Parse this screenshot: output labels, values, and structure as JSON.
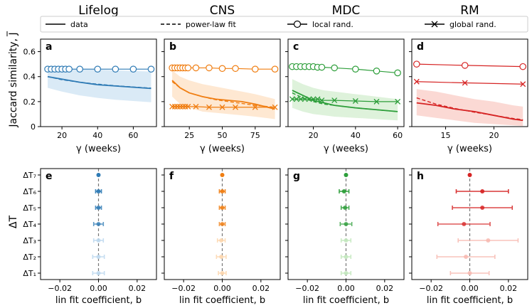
{
  "colors": {
    "lifelog": [
      "#2f7bb5",
      "#bcd8ef"
    ],
    "cns": [
      "#f07e12",
      "#fdd6ad"
    ],
    "mdc": [
      "#2d9e3a",
      "#c2e8bd"
    ],
    "rm": [
      "#d62424",
      "#f7b9b0"
    ],
    "axis": "#000000",
    "dashed_zero": "#777777"
  },
  "legend": {
    "items": [
      {
        "label": "data",
        "style": "solid",
        "marker": "none"
      },
      {
        "label": "power-law fit",
        "style": "dashed",
        "marker": "none"
      },
      {
        "label": "local rand.",
        "style": "solid",
        "marker": "circle"
      },
      {
        "label": "global rand.",
        "style": "solid",
        "marker": "x"
      }
    ]
  },
  "column_titles": [
    "Lifelog",
    "CNS",
    "MDC",
    "RM"
  ],
  "top_ylabel": "Jaccard similarity, J̅",
  "bottom_ylabel": "ΔT",
  "chart_data": [
    {
      "type": "line",
      "panel": "a",
      "dataset": "Lifelog",
      "xlabel": "γ (weeks)",
      "ylabel": "Jaccard similarity, J̅",
      "xlim": [
        8,
        73
      ],
      "ylim": [
        0,
        0.7
      ],
      "xticks": [
        20,
        40,
        60
      ],
      "yticks": [
        0,
        0.2,
        0.4,
        0.6
      ],
      "data": {
        "x": [
          12,
          20,
          30,
          40,
          50,
          60,
          70
        ],
        "y": [
          0.4,
          0.38,
          0.355,
          0.335,
          0.325,
          0.315,
          0.305
        ]
      },
      "fit": {
        "x": [
          12,
          20,
          30,
          40,
          50,
          60,
          70
        ],
        "y": [
          0.4,
          0.375,
          0.355,
          0.34,
          0.327,
          0.317,
          0.308
        ]
      },
      "band": {
        "x": [
          12,
          20,
          30,
          40,
          50,
          60,
          70
        ],
        "low": [
          0.31,
          0.28,
          0.25,
          0.23,
          0.215,
          0.205,
          0.195
        ],
        "high": [
          0.48,
          0.47,
          0.46,
          0.455,
          0.45,
          0.445,
          0.44
        ]
      },
      "local_rand": {
        "x": [
          12,
          14,
          16,
          18,
          20,
          22,
          24,
          30,
          40,
          50,
          60,
          70
        ],
        "y": [
          0.46,
          0.46,
          0.46,
          0.46,
          0.46,
          0.46,
          0.46,
          0.46,
          0.46,
          0.46,
          0.46,
          0.46
        ]
      },
      "global_rand": null
    },
    {
      "type": "line",
      "panel": "b",
      "dataset": "CNS",
      "xlabel": "γ (weeks)",
      "ylabel": "",
      "xlim": [
        6,
        94
      ],
      "ylim": [
        0,
        0.7
      ],
      "xticks": [
        25,
        50,
        75
      ],
      "yticks": [
        0,
        0.2,
        0.4,
        0.6
      ],
      "data": {
        "x": [
          12,
          18,
          25,
          35,
          45,
          55,
          65,
          75,
          90
        ],
        "y": [
          0.37,
          0.31,
          0.27,
          0.24,
          0.22,
          0.21,
          0.2,
          0.18,
          0.14
        ]
      },
      "fit": {
        "x": [
          12,
          18,
          25,
          35,
          45,
          55,
          65,
          75,
          90
        ],
        "y": [
          0.36,
          0.31,
          0.27,
          0.24,
          0.215,
          0.2,
          0.185,
          0.17,
          0.155
        ]
      },
      "band": {
        "x": [
          12,
          18,
          25,
          35,
          45,
          55,
          65,
          75,
          90
        ],
        "low": [
          0.24,
          0.18,
          0.15,
          0.12,
          0.11,
          0.1,
          0.09,
          0.08,
          0.06
        ],
        "high": [
          0.45,
          0.4,
          0.37,
          0.34,
          0.32,
          0.3,
          0.28,
          0.26,
          0.22
        ]
      },
      "local_rand": {
        "x": [
          12,
          14,
          16,
          18,
          20,
          22,
          24,
          30,
          40,
          50,
          60,
          75,
          90
        ],
        "y": [
          0.47,
          0.47,
          0.47,
          0.47,
          0.47,
          0.47,
          0.47,
          0.47,
          0.47,
          0.465,
          0.465,
          0.46,
          0.46
        ]
      },
      "global_rand": {
        "x": [
          12,
          14,
          16,
          18,
          20,
          22,
          24,
          30,
          40,
          50,
          60,
          75,
          90
        ],
        "y": [
          0.16,
          0.16,
          0.16,
          0.16,
          0.16,
          0.16,
          0.16,
          0.16,
          0.155,
          0.155,
          0.155,
          0.155,
          0.155
        ]
      }
    },
    {
      "type": "line",
      "panel": "c",
      "dataset": "MDC",
      "xlabel": "γ (weeks)",
      "ylabel": "",
      "xlim": [
        8,
        63
      ],
      "ylim": [
        0,
        0.7
      ],
      "xticks": [
        20,
        40,
        60
      ],
      "yticks": [
        0,
        0.2,
        0.4,
        0.6
      ],
      "data": {
        "x": [
          10,
          15,
          20,
          25,
          30,
          40,
          50,
          60
        ],
        "y": [
          0.29,
          0.25,
          0.21,
          0.19,
          0.17,
          0.15,
          0.135,
          0.12
        ]
      },
      "fit": {
        "x": [
          10,
          15,
          20,
          25,
          30,
          40,
          50,
          60
        ],
        "y": [
          0.27,
          0.23,
          0.2,
          0.18,
          0.17,
          0.15,
          0.135,
          0.12
        ]
      },
      "band": {
        "x": [
          10,
          15,
          20,
          25,
          30,
          40,
          50,
          60
        ],
        "low": [
          0.15,
          0.12,
          0.1,
          0.09,
          0.08,
          0.07,
          0.06,
          0.05
        ],
        "high": [
          0.38,
          0.34,
          0.31,
          0.29,
          0.28,
          0.26,
          0.24,
          0.22
        ]
      },
      "local_rand": {
        "x": [
          10,
          12,
          14,
          16,
          18,
          20,
          22,
          24,
          30,
          40,
          50,
          60
        ],
        "y": [
          0.48,
          0.48,
          0.48,
          0.48,
          0.48,
          0.48,
          0.475,
          0.475,
          0.47,
          0.46,
          0.445,
          0.43
        ]
      },
      "global_rand": {
        "x": [
          10,
          12,
          14,
          16,
          18,
          20,
          22,
          24,
          30,
          40,
          50,
          60
        ],
        "y": [
          0.22,
          0.22,
          0.22,
          0.22,
          0.22,
          0.22,
          0.22,
          0.21,
          0.21,
          0.205,
          0.2,
          0.2
        ]
      }
    },
    {
      "type": "line",
      "panel": "d",
      "dataset": "RM",
      "xlabel": "γ (weeks)",
      "ylabel": "",
      "xlim": [
        11.5,
        23.5
      ],
      "ylim": [
        0,
        0.7
      ],
      "xticks": [
        15,
        20
      ],
      "yticks": [
        0,
        0.2,
        0.4,
        0.6
      ],
      "data": {
        "x": [
          12,
          14,
          16,
          18,
          20,
          22,
          23
        ],
        "y": [
          0.19,
          0.17,
          0.14,
          0.12,
          0.09,
          0.06,
          0.05
        ]
      },
      "fit": {
        "x": [
          12,
          14,
          16,
          18,
          20,
          22,
          23
        ],
        "y": [
          0.23,
          0.18,
          0.145,
          0.115,
          0.09,
          0.065,
          0.055
        ]
      },
      "band": {
        "x": [
          12,
          14,
          16,
          18,
          20,
          22,
          23
        ],
        "low": [
          0.09,
          0.07,
          0.05,
          0.03,
          0.02,
          0.01,
          0.005
        ],
        "high": [
          0.3,
          0.28,
          0.25,
          0.22,
          0.2,
          0.17,
          0.16
        ]
      },
      "local_rand": {
        "x": [
          12,
          17,
          23
        ],
        "y": [
          0.5,
          0.49,
          0.48
        ]
      },
      "global_rand": {
        "x": [
          12,
          17,
          23
        ],
        "y": [
          0.36,
          0.35,
          0.34
        ]
      }
    },
    {
      "type": "scatter",
      "panel": "e",
      "dataset": "Lifelog",
      "error_bars": true,
      "xlabel": "lin fit coefficient, b",
      "ylabel": "ΔT",
      "xlim": [
        -0.03,
        0.03
      ],
      "xticks": [
        -0.02,
        0.0,
        0.02
      ],
      "xticklabels": [
        "−0.02",
        "0.00",
        "0.02"
      ],
      "categories": [
        "ΔT₇",
        "ΔT₆",
        "ΔT₅",
        "ΔT₄",
        "ΔT₃",
        "ΔT₂",
        "ΔT₁"
      ],
      "values": [
        0.0,
        0.0,
        0.0,
        0.0,
        0.0,
        0.0,
        0.0
      ],
      "errors": [
        0.0,
        0.0015,
        0.0015,
        0.0025,
        0.0025,
        0.003,
        0.003
      ]
    },
    {
      "type": "scatter",
      "panel": "f",
      "dataset": "CNS",
      "error_bars": true,
      "xlabel": "lin fit coefficient, b",
      "ylabel": "",
      "xlim": [
        -0.03,
        0.03
      ],
      "xticks": [
        -0.02,
        0.0,
        0.02
      ],
      "xticklabels": [
        "−0.02",
        "0.00",
        "0.02"
      ],
      "categories": [
        "ΔT₇",
        "ΔT₆",
        "ΔT₅",
        "ΔT₄",
        "ΔT₃",
        "ΔT₂",
        "ΔT₁"
      ],
      "values": [
        0.0,
        0.0,
        0.0,
        0.0,
        -0.0005,
        -0.0005,
        0.0
      ],
      "errors": [
        0.0,
        0.0015,
        0.0015,
        0.0015,
        0.002,
        0.0025,
        0.002
      ]
    },
    {
      "type": "scatter",
      "panel": "g",
      "dataset": "MDC",
      "error_bars": true,
      "xlabel": "lin fit coefficient, b",
      "ylabel": "",
      "xlim": [
        -0.03,
        0.03
      ],
      "xticks": [
        -0.02,
        0.0,
        0.02
      ],
      "xticklabels": [
        "−0.02",
        "0.00",
        "0.02"
      ],
      "categories": [
        "ΔT₇",
        "ΔT₆",
        "ΔT₅",
        "ΔT₄",
        "ΔT₃",
        "ΔT₂",
        "ΔT₁"
      ],
      "values": [
        0.0,
        -0.001,
        -0.0005,
        0.0,
        0.0,
        0.0,
        0.0
      ],
      "errors": [
        0.0,
        0.0025,
        0.002,
        0.003,
        0.0025,
        0.0025,
        0.0025
      ]
    },
    {
      "type": "scatter",
      "panel": "h",
      "dataset": "RM",
      "error_bars": true,
      "xlabel": "lin fit coefficient, b",
      "ylabel": "",
      "xlim": [
        -0.03,
        0.03
      ],
      "xticks": [
        -0.02,
        0.0,
        0.02
      ],
      "xticklabels": [
        "−0.02",
        "0.00",
        "0.02"
      ],
      "categories": [
        "ΔT₇",
        "ΔT₆",
        "ΔT₅",
        "ΔT₄",
        "ΔT₃",
        "ΔT₂",
        "ΔT₁"
      ],
      "values": [
        0.0,
        0.0065,
        0.0065,
        -0.003,
        0.0095,
        -0.002,
        0.0
      ],
      "errors": [
        0.0,
        0.0135,
        0.0155,
        0.0135,
        0.0155,
        0.015,
        0.01
      ]
    }
  ]
}
